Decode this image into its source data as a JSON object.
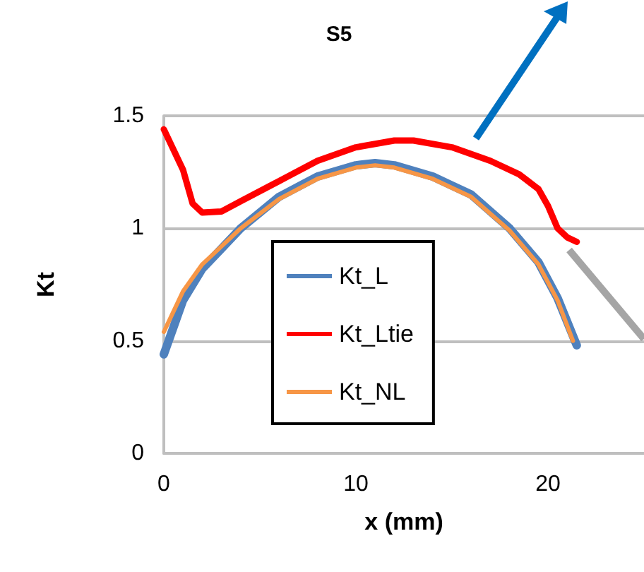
{
  "chart_data": {
    "type": "line",
    "title": "S5",
    "xlabel": "x (mm)",
    "ylabel": "Kt",
    "xlim": [
      0,
      25
    ],
    "xticks": [
      0,
      10,
      20
    ],
    "ylim": [
      0,
      1.5
    ],
    "yticks": [
      0,
      0.5,
      1,
      1.5
    ],
    "grid": "y",
    "legend": "center",
    "marker": "none",
    "line_style": "solid",
    "series": [
      {
        "name": "Kt_L",
        "color": "#4f81bd",
        "x": [
          0,
          1,
          2,
          3,
          4,
          6,
          8,
          10,
          11,
          12,
          14,
          16,
          18,
          19.5,
          20.5,
          21.5
        ],
        "values": [
          0.44,
          0.68,
          0.82,
          0.91,
          1.0,
          1.14,
          1.23,
          1.28,
          1.29,
          1.28,
          1.23,
          1.15,
          1.0,
          0.85,
          0.69,
          0.48
        ]
      },
      {
        "name": "Kt_Ltie",
        "color": "#ff0000",
        "x": [
          0,
          1,
          1.5,
          2,
          3,
          4,
          6,
          8,
          10,
          12,
          13,
          15,
          17,
          18.5,
          19.5,
          20,
          20.5,
          21,
          21.5
        ],
        "values": [
          1.44,
          1.26,
          1.11,
          1.07,
          1.075,
          1.12,
          1.21,
          1.3,
          1.36,
          1.39,
          1.39,
          1.36,
          1.3,
          1.24,
          1.175,
          1.1,
          1.0,
          0.96,
          0.94
        ]
      },
      {
        "name": "Kt_NL",
        "color": "#f79646",
        "x": [
          0,
          1,
          2,
          3,
          4,
          6,
          8,
          10,
          11,
          12,
          14,
          16,
          18,
          19.5,
          20.5,
          21.3
        ],
        "values": [
          0.54,
          0.72,
          0.84,
          0.92,
          1.0,
          1.13,
          1.22,
          1.27,
          1.28,
          1.27,
          1.22,
          1.14,
          0.99,
          0.84,
          0.68,
          0.5
        ]
      }
    ]
  }
}
